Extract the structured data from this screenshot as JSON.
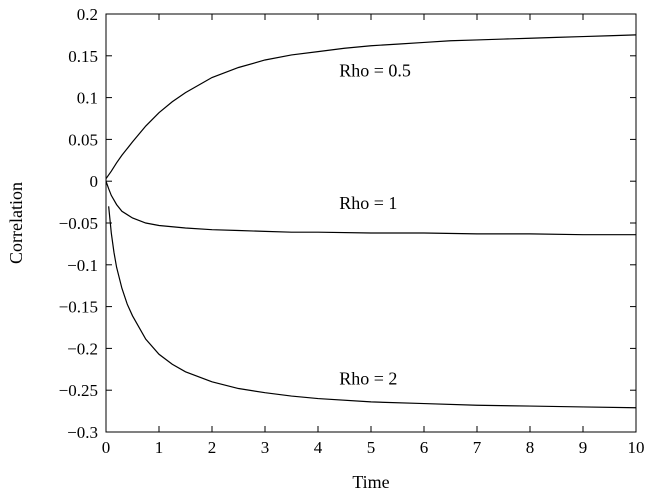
{
  "chart_data": {
    "type": "line",
    "title": "",
    "xlabel": "Time",
    "ylabel": "Correlation",
    "xlim": [
      0,
      10
    ],
    "ylim": [
      -0.3,
      0.2
    ],
    "xticks": [
      0,
      1,
      2,
      3,
      4,
      5,
      6,
      7,
      8,
      9,
      10
    ],
    "xtick_labels": [
      "0",
      "1",
      "2",
      "3",
      "4",
      "5",
      "6",
      "7",
      "8",
      "9",
      "10"
    ],
    "yticks": [
      0.2,
      0.15,
      0.1,
      0.05,
      0,
      -0.05,
      -0.1,
      -0.15,
      -0.2,
      -0.25,
      -0.3
    ],
    "ytick_labels": [
      "0.2",
      "0.15",
      "0.1",
      "0.05",
      "0",
      "−0.05",
      "−0.1",
      "−0.15",
      "−0.2",
      "−0.25",
      "−0.3"
    ],
    "grid": false,
    "line_color": "#000000",
    "series": [
      {
        "annotation": "Rho = 0.5",
        "annotation_anchor": [
          4.4,
          0.125
        ],
        "x": [
          0,
          0.1,
          0.2,
          0.3,
          0.5,
          0.75,
          1,
          1.25,
          1.5,
          2,
          2.5,
          3,
          3.5,
          4,
          4.5,
          5,
          5.5,
          6,
          6.5,
          7,
          7.5,
          8,
          8.5,
          9,
          9.5,
          10
        ],
        "y": [
          0.003,
          0.012,
          0.022,
          0.031,
          0.047,
          0.066,
          0.082,
          0.095,
          0.106,
          0.124,
          0.136,
          0.145,
          0.151,
          0.155,
          0.159,
          0.162,
          0.164,
          0.166,
          0.168,
          0.169,
          0.17,
          0.171,
          0.172,
          0.173,
          0.174,
          0.175
        ]
      },
      {
        "annotation": "Rho = 1",
        "annotation_anchor": [
          4.4,
          -0.033
        ],
        "x": [
          0,
          0.05,
          0.1,
          0.2,
          0.3,
          0.5,
          0.75,
          1,
          1.5,
          2,
          2.5,
          3,
          3.5,
          4,
          5,
          6,
          7,
          8,
          9,
          10
        ],
        "y": [
          0.0,
          -0.009,
          -0.017,
          -0.028,
          -0.036,
          -0.044,
          -0.05,
          -0.053,
          -0.056,
          -0.058,
          -0.059,
          -0.06,
          -0.061,
          -0.061,
          -0.062,
          -0.062,
          -0.063,
          -0.063,
          -0.064,
          -0.064
        ]
      },
      {
        "annotation": "Rho = 2",
        "annotation_anchor": [
          4.4,
          -0.243
        ],
        "x": [
          0.05,
          0.1,
          0.15,
          0.2,
          0.3,
          0.4,
          0.5,
          0.75,
          1,
          1.25,
          1.5,
          2,
          2.5,
          3,
          3.5,
          4,
          5,
          6,
          7,
          8,
          9,
          10
        ],
        "y": [
          -0.03,
          -0.062,
          -0.085,
          -0.103,
          -0.128,
          -0.147,
          -0.161,
          -0.189,
          -0.207,
          -0.219,
          -0.228,
          -0.24,
          -0.248,
          -0.253,
          -0.257,
          -0.26,
          -0.264,
          -0.266,
          -0.268,
          -0.269,
          -0.27,
          -0.271
        ]
      }
    ]
  }
}
